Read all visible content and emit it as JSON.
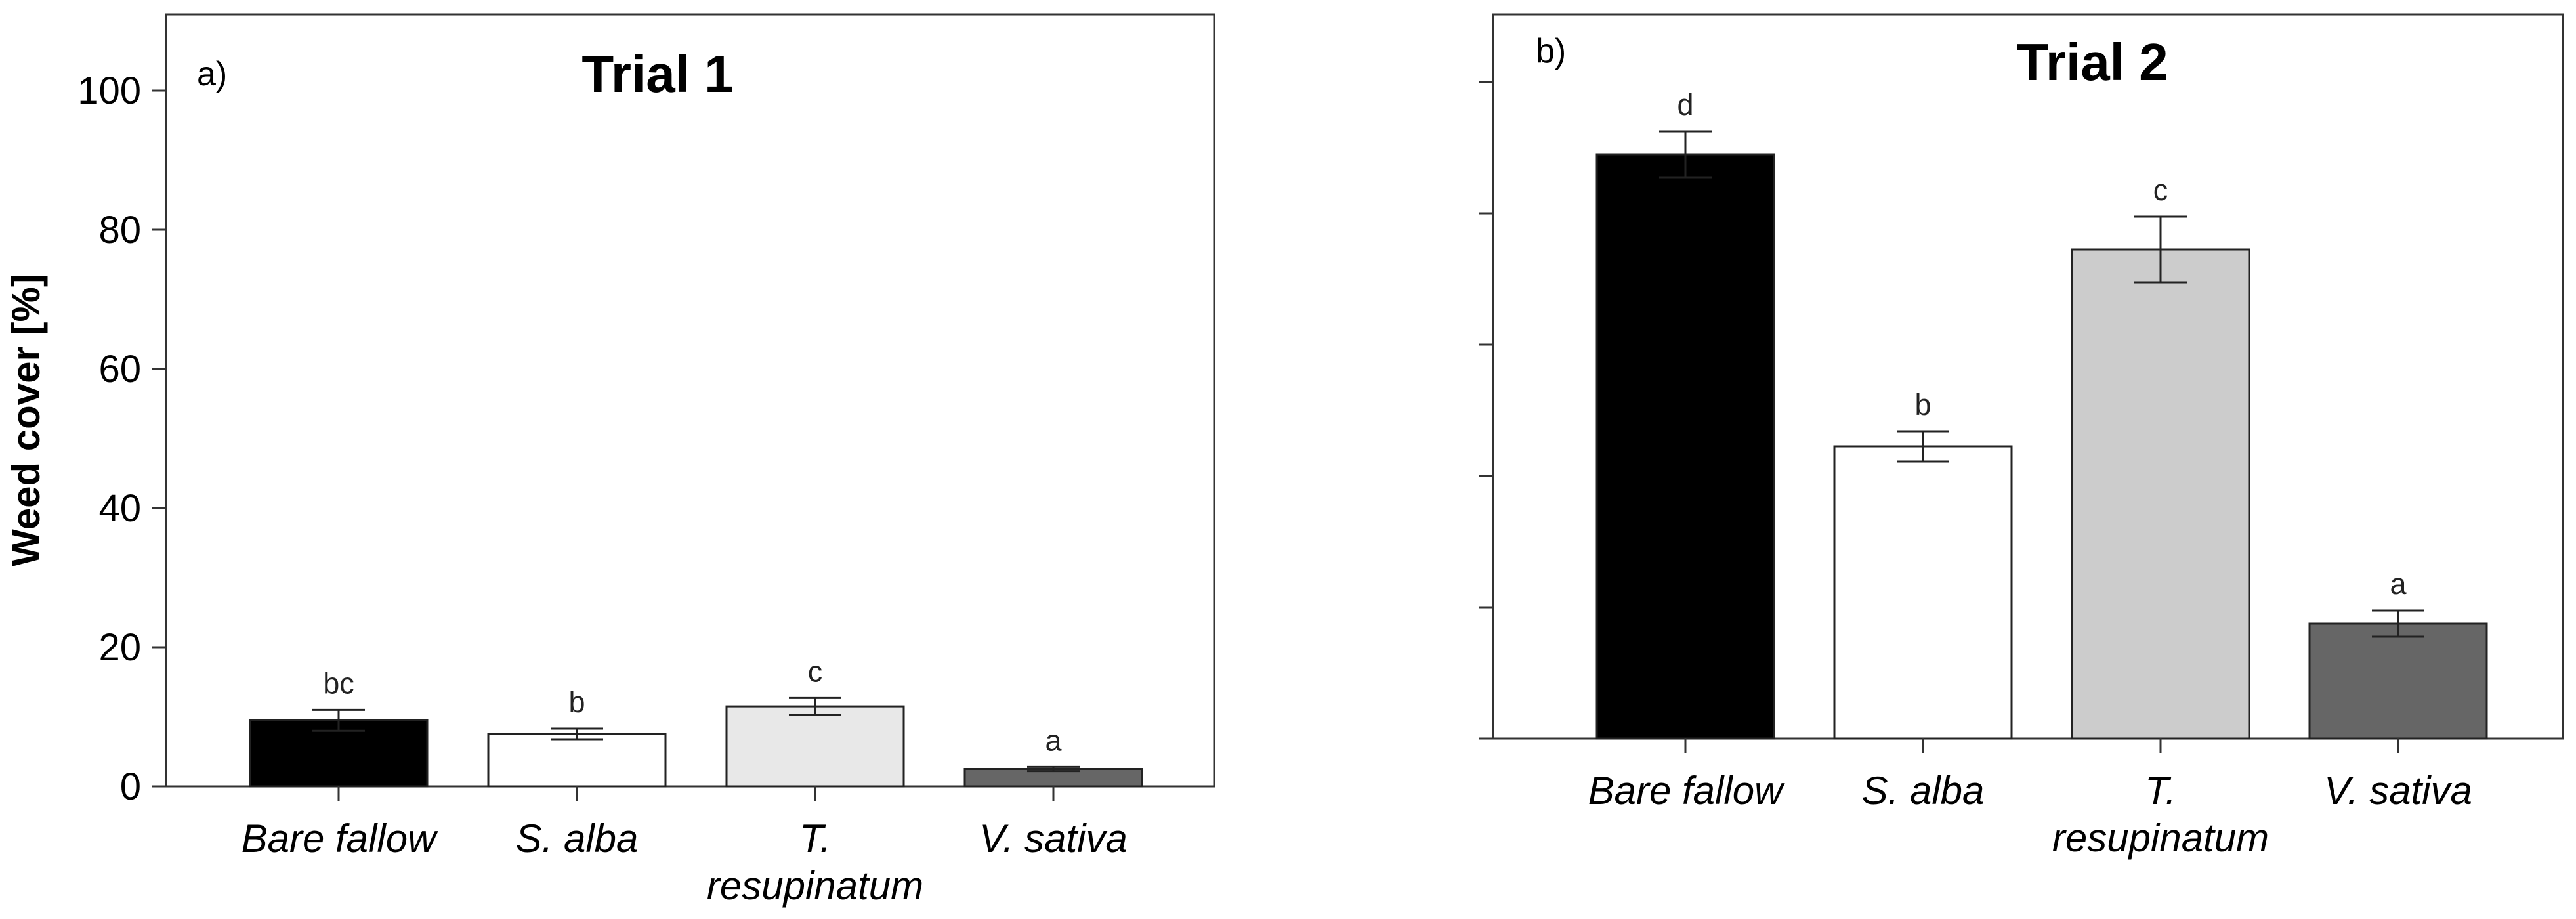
{
  "ylabel": "Weed cover [%]",
  "chart_data": [
    {
      "type": "bar",
      "panel_label": "a)",
      "title": "Trial 1",
      "xlabel": "",
      "ylabel": "Weed cover [%]",
      "ylim": [
        0,
        110
      ],
      "yticks": [
        0,
        20,
        40,
        60,
        80,
        100
      ],
      "categories": [
        "Bare fallow",
        "S. alba",
        "T. resupinatum",
        "V. sativa"
      ],
      "category_label_lines": [
        [
          "Bare fallow"
        ],
        [
          "S. alba"
        ],
        [
          "T.",
          "resupinatum"
        ],
        [
          "V. sativa"
        ]
      ],
      "values": [
        9.5,
        7.5,
        11.5,
        2.5
      ],
      "error": [
        1.5,
        0.8,
        1.2,
        0.3
      ],
      "letters": [
        "bc",
        "b",
        "c",
        "a"
      ],
      "colors": [
        "#000000",
        "#ffffff",
        "#e8e8e8",
        "#666666"
      ],
      "grid": false
    },
    {
      "type": "bar",
      "panel_label": "b)",
      "title": "Trial 2",
      "xlabel": "",
      "ylabel": "",
      "ylim": [
        0,
        110
      ],
      "yticks": [
        0,
        20,
        40,
        60,
        80,
        100
      ],
      "show_tick_labels": false,
      "categories": [
        "Bare fallow",
        "S. alba",
        "T. resupinatum",
        "V. sativa"
      ],
      "category_label_lines": [
        [
          "Bare fallow"
        ],
        [
          "S. alba"
        ],
        [
          "T.",
          "resupinatum"
        ],
        [
          "V. sativa"
        ]
      ],
      "values": [
        89,
        44.5,
        74.5,
        17.5
      ],
      "error": [
        3.5,
        2.3,
        5.0,
        2.0
      ],
      "letters": [
        "d",
        "b",
        "c",
        "a"
      ],
      "colors": [
        "#000000",
        "#ffffff",
        "#cccccc",
        "#666666"
      ],
      "grid": false
    }
  ]
}
